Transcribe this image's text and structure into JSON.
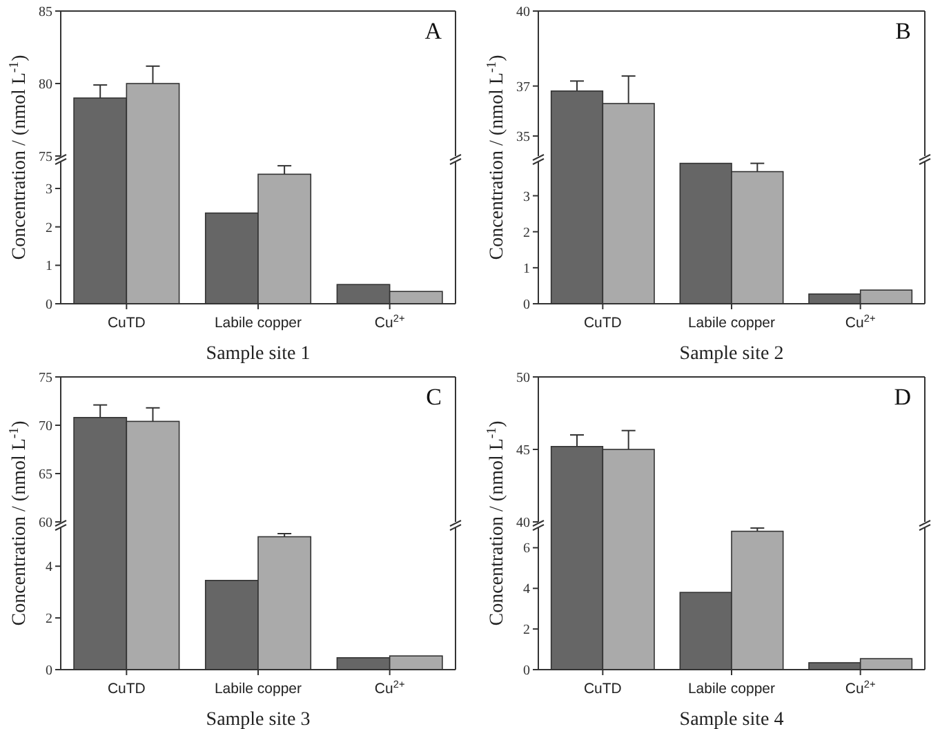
{
  "chart_data": [
    {
      "type": "bar",
      "ylabel": "Concentration / (nmol L$^{-1}$)",
      "annotations": [
        "A"
      ],
      "categories": [
        null,
        null,
        null
      ],
      "ylim": [
        75,
        85
      ],
      "yticks": [
        75,
        80,
        85
      ],
      "tick_labels": "y",
      "series": [
        {
          "color": "#666666",
          "values": [
            79.0,
            null,
            null
          ],
          "errors": [
            [
              79.0,
              79.9
            ],
            null,
            null
          ]
        },
        {
          "color": "#aaaaaa",
          "values": [
            80.0,
            null,
            null
          ],
          "errors": [
            [
              80.0,
              81.2
            ],
            null,
            null
          ]
        }
      ]
    },
    {
      "type": "bar",
      "xlabel": "Sample site 1",
      "categories": [
        "CuTD",
        "Labile copper",
        "Cu$^{2+}$"
      ],
      "ylim": [
        0,
        3.7
      ],
      "yticks": [
        0,
        1,
        2,
        3
      ],
      "series": [
        {
          "color": "#666666",
          "values": [
            null,
            2.36,
            0.5
          ],
          "errors": [
            null,
            null,
            null
          ]
        },
        {
          "color": "#aaaaaa",
          "values": [
            null,
            3.37,
            0.32
          ],
          "errors": [
            null,
            [
              3.37,
              3.59
            ],
            null
          ]
        }
      ]
    },
    {
      "type": "bar",
      "ylabel": "Concentration / (nmol L$^{-1}$)",
      "annotations": [
        "B"
      ],
      "categories": [
        null,
        null,
        null
      ],
      "ylim": [
        34.2,
        40
      ],
      "yticks": [
        35,
        37,
        40
      ],
      "tick_labels": "y",
      "series": [
        {
          "color": "#666666",
          "values": [
            36.8,
            null,
            null
          ],
          "errors": [
            [
              36.8,
              37.2
            ],
            null,
            null
          ]
        },
        {
          "color": "#aaaaaa",
          "values": [
            36.3,
            null,
            null
          ],
          "errors": [
            [
              36.3,
              37.4
            ],
            null,
            null
          ]
        }
      ]
    },
    {
      "type": "bar",
      "xlabel": "Sample site 2",
      "categories": [
        "CuTD",
        "Labile copper",
        "Cu$^{2+}$"
      ],
      "ylim": [
        0,
        3.95
      ],
      "yticks": [
        0,
        1,
        2,
        3
      ],
      "series": [
        {
          "color": "#666666",
          "values": [
            null,
            3.9,
            0.27
          ],
          "errors": [
            null,
            null,
            null
          ]
        },
        {
          "color": "#aaaaaa",
          "values": [
            null,
            3.67,
            0.38
          ],
          "errors": [
            null,
            [
              3.67,
              3.9
            ],
            null
          ]
        }
      ]
    },
    {
      "type": "bar",
      "ylabel": "Concentration / (nmol L$^{-1}$)",
      "annotations": [
        "C"
      ],
      "categories": [
        null,
        null,
        null
      ],
      "ylim": [
        60,
        75
      ],
      "yticks": [
        60,
        65,
        70,
        75
      ],
      "tick_labels": "y",
      "series": [
        {
          "color": "#666666",
          "values": [
            70.8,
            null,
            null
          ],
          "errors": [
            [
              70.8,
              72.1
            ],
            null,
            null
          ]
        },
        {
          "color": "#aaaaaa",
          "values": [
            70.4,
            null,
            null
          ],
          "errors": [
            [
              70.4,
              71.8
            ],
            null,
            null
          ]
        }
      ]
    },
    {
      "type": "bar",
      "xlabel": "Sample site 3",
      "categories": [
        "CuTD",
        "Labile copper",
        "Cu$^{2+}$"
      ],
      "ylim": [
        0,
        5.5
      ],
      "yticks": [
        0,
        2,
        4
      ],
      "series": [
        {
          "color": "#666666",
          "values": [
            null,
            3.45,
            0.46
          ],
          "errors": [
            null,
            null,
            null
          ]
        },
        {
          "color": "#aaaaaa",
          "values": [
            null,
            5.14,
            0.53
          ],
          "errors": [
            null,
            [
              5.14,
              5.26
            ],
            null
          ]
        }
      ]
    },
    {
      "type": "bar",
      "ylabel": "Concentration / (nmol L$^{-1}$)",
      "annotations": [
        "D"
      ],
      "categories": [
        null,
        null,
        null
      ],
      "ylim": [
        40,
        50
      ],
      "yticks": [
        40,
        45,
        50
      ],
      "tick_labels": "y",
      "series": [
        {
          "color": "#666666",
          "values": [
            45.2,
            null,
            null
          ],
          "errors": [
            [
              45.2,
              46.0
            ],
            null,
            null
          ]
        },
        {
          "color": "#aaaaaa",
          "values": [
            45.0,
            null,
            null
          ],
          "errors": [
            [
              45.0,
              46.3
            ],
            null,
            null
          ]
        }
      ]
    },
    {
      "type": "bar",
      "xlabel": "Sample site 4",
      "categories": [
        "CuTD",
        "Labile copper",
        "Cu$^{2+}$"
      ],
      "ylim": [
        0,
        7
      ],
      "yticks": [
        0,
        2,
        4,
        6
      ],
      "series": [
        {
          "color": "#666666",
          "values": [
            null,
            3.8,
            0.34
          ],
          "errors": [
            null,
            null,
            null
          ]
        },
        {
          "color": "#aaaaaa",
          "values": [
            null,
            6.81,
            0.54
          ],
          "errors": [
            null,
            [
              6.81,
              6.97
            ],
            null
          ]
        }
      ]
    }
  ]
}
